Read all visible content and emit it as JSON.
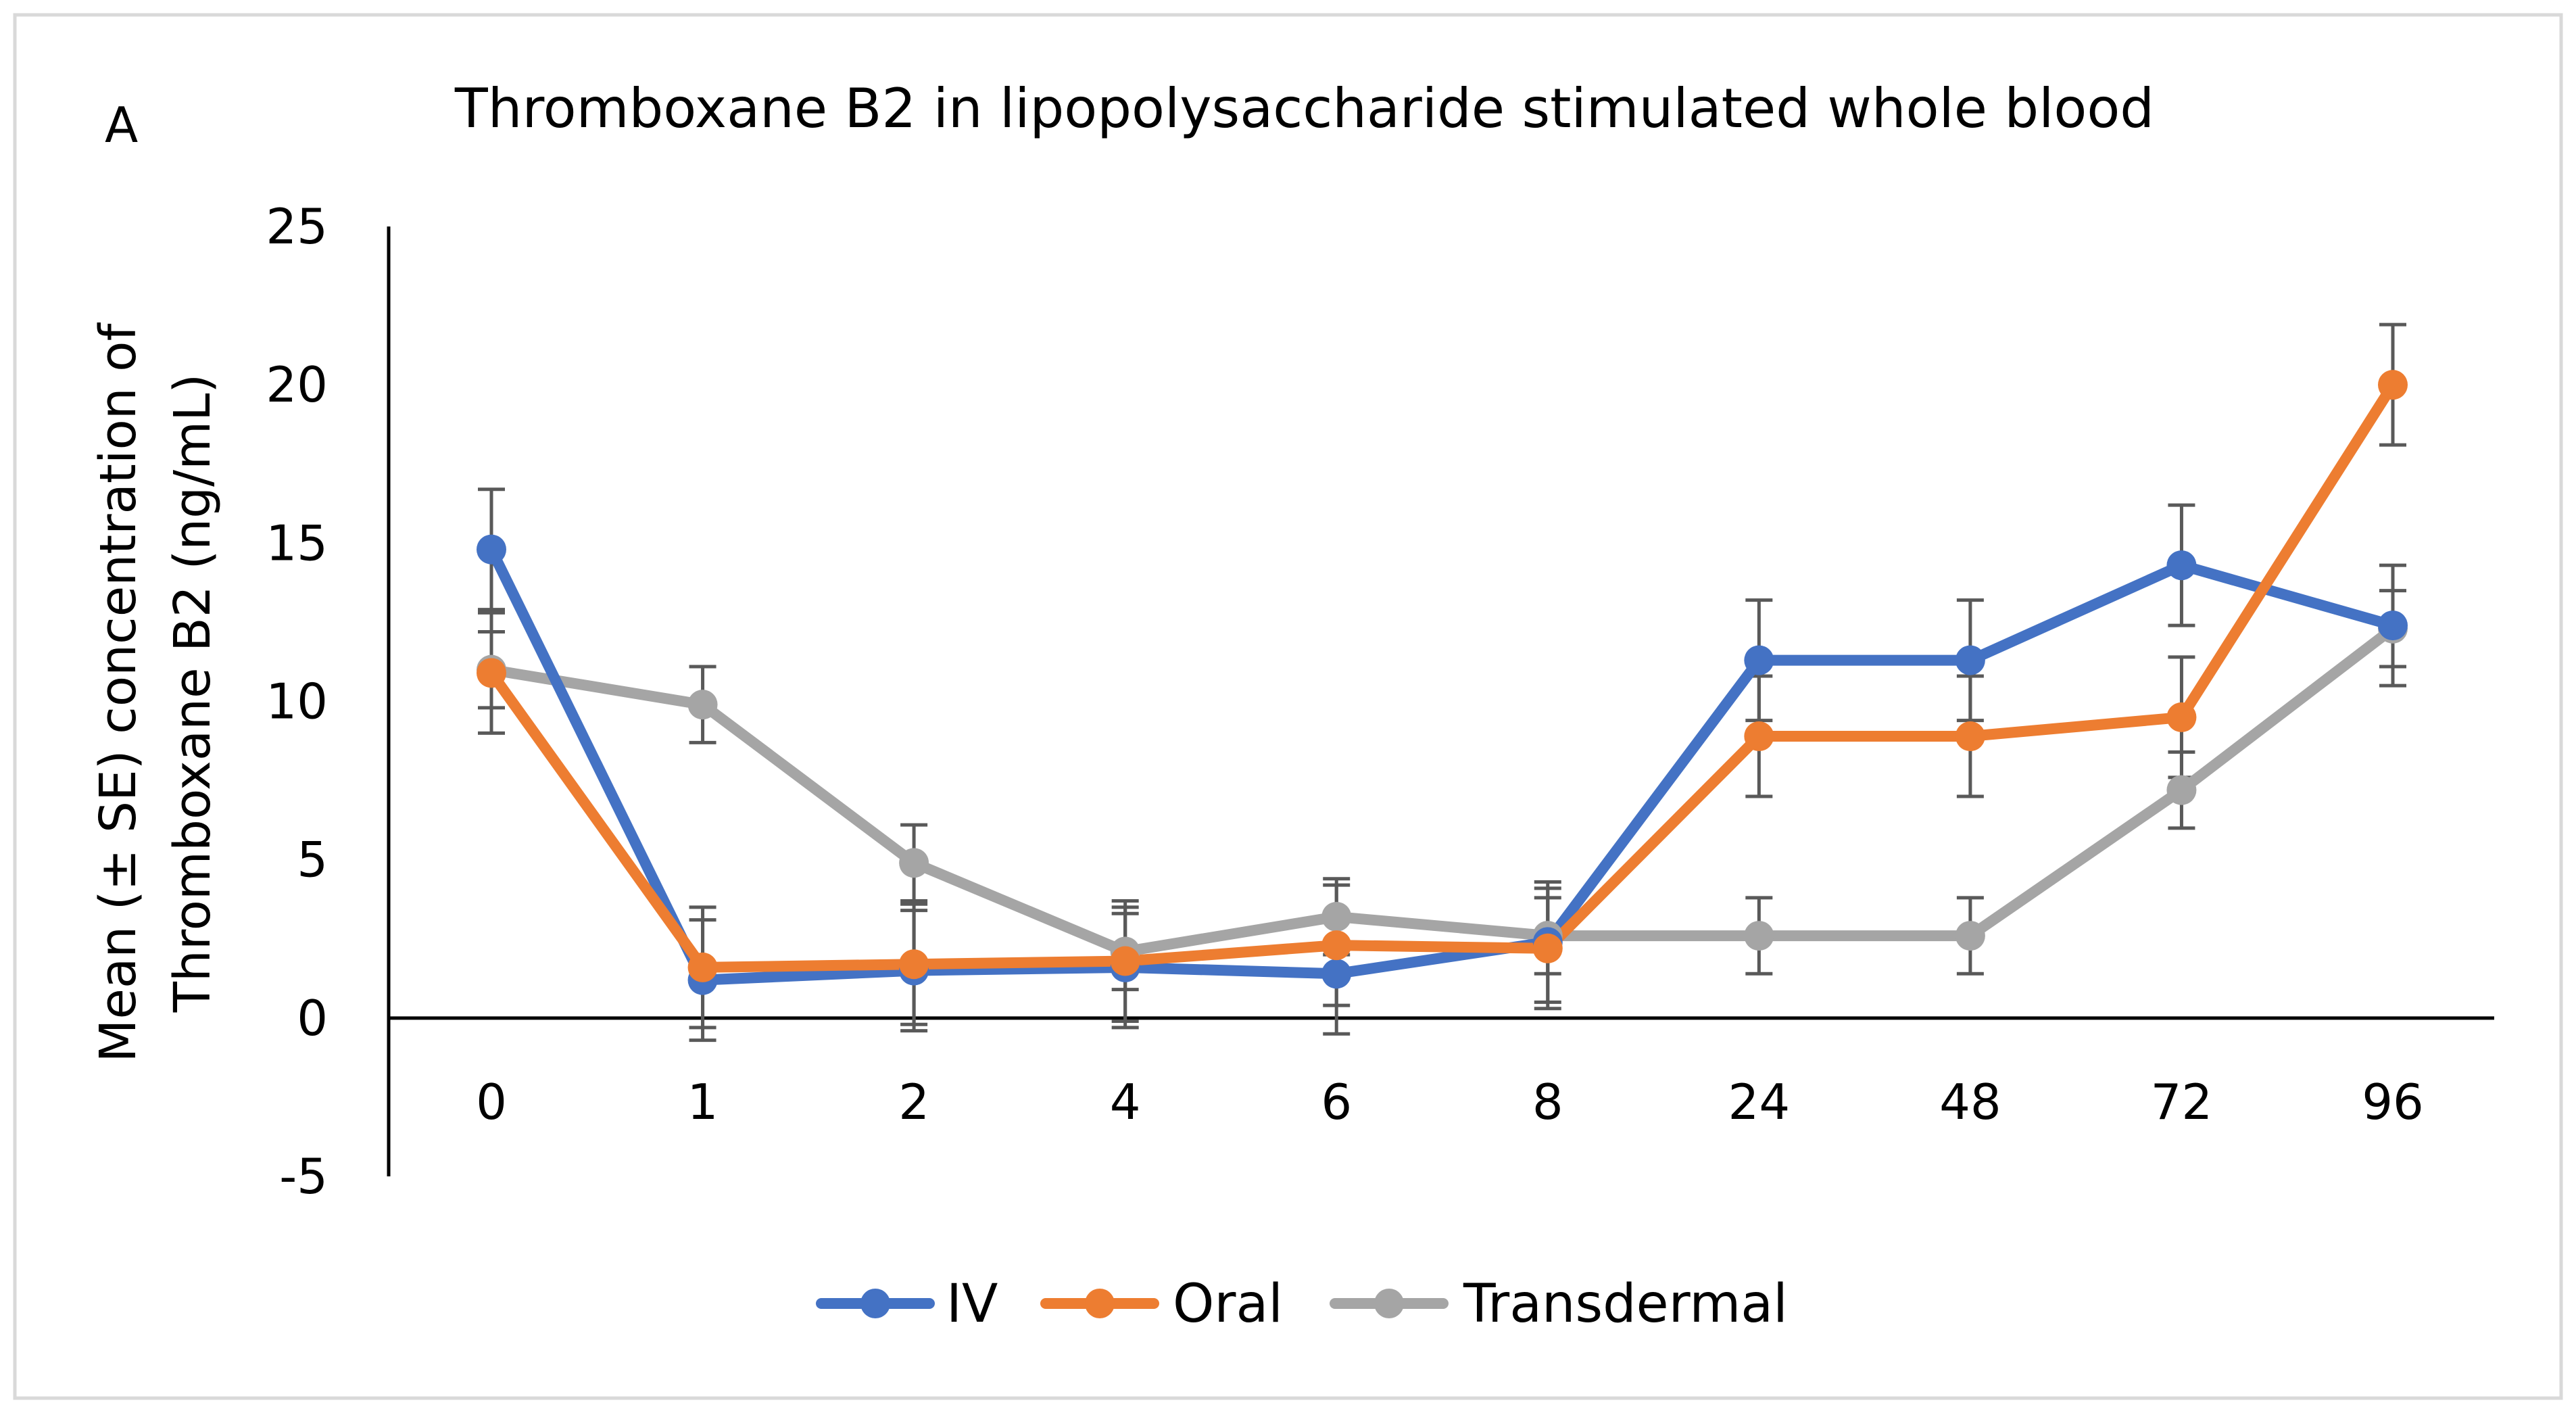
{
  "chart_data": {
    "type": "line",
    "panel_label": "A",
    "title": "Thromboxane B2 in lipopolysaccharide stimulated whole blood",
    "ylabel_line1": "Mean (± SE) concentration of",
    "ylabel_line2": "Thromboxane B2  (ng/mL)",
    "xlabel": "",
    "categories": [
      "0",
      "1",
      "2",
      "4",
      "6",
      "8",
      "24",
      "48",
      "72",
      "96"
    ],
    "ylim": [
      -5,
      25
    ],
    "yticks": [
      -5,
      0,
      5,
      10,
      15,
      20,
      25
    ],
    "grid": false,
    "legend_position": "bottom-center",
    "series": [
      {
        "name": "IV",
        "color": "#4472C4",
        "values": [
          14.8,
          1.2,
          1.5,
          1.6,
          1.4,
          2.4,
          11.3,
          11.3,
          14.3,
          12.4
        ],
        "errors": [
          1.9,
          1.9,
          1.9,
          1.9,
          1.9,
          1.9,
          1.9,
          1.9,
          1.9,
          1.9
        ]
      },
      {
        "name": "Oral",
        "color": "#ED7D31",
        "values": [
          10.9,
          1.6,
          1.7,
          1.8,
          2.3,
          2.2,
          8.9,
          8.9,
          9.5,
          20.0
        ],
        "errors": [
          1.9,
          1.9,
          1.9,
          1.9,
          1.9,
          1.9,
          1.9,
          1.9,
          1.9,
          1.9
        ]
      },
      {
        "name": "Transdermal",
        "color": "#A5A5A5",
        "values": [
          11.0,
          9.9,
          4.9,
          2.1,
          3.2,
          2.6,
          2.6,
          2.6,
          7.2,
          12.3
        ],
        "errors": [
          1.2,
          1.2,
          1.2,
          1.2,
          1.2,
          1.2,
          1.2,
          1.2,
          1.2,
          1.2
        ]
      }
    ]
  }
}
